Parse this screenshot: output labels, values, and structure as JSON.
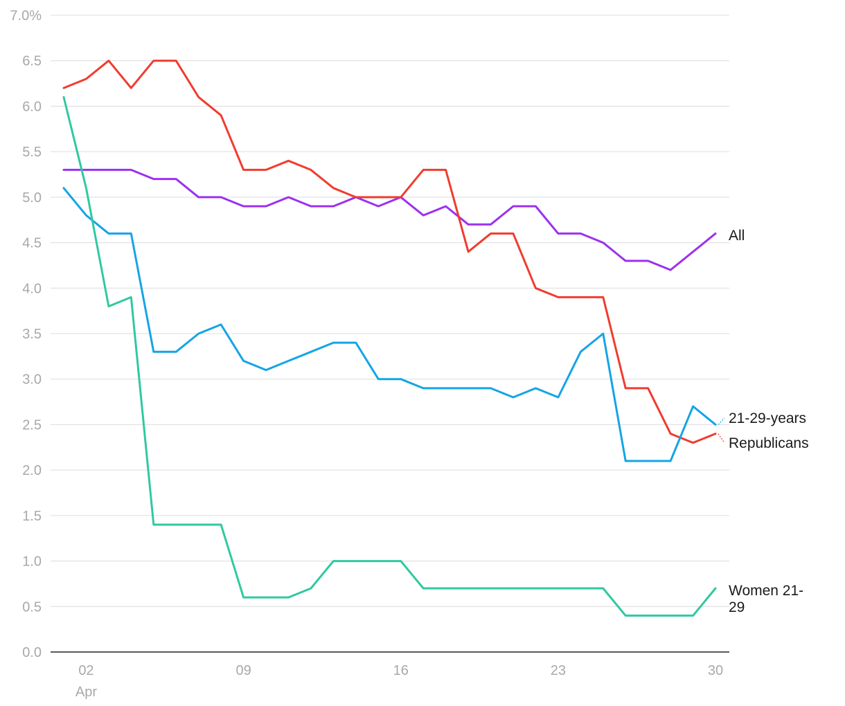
{
  "chart_data": {
    "type": "line",
    "title": "",
    "xlabel": "",
    "ylabel": "",
    "ylim": [
      0,
      7
    ],
    "y_ticks": [
      0,
      0.5,
      1,
      1.5,
      2,
      2.5,
      3,
      3.5,
      4,
      4.5,
      5,
      5.5,
      6,
      6.5,
      7
    ],
    "y_tick_labels": [
      "0.0",
      "0.5",
      "1.0",
      "1.5",
      "2.0",
      "2.5",
      "3.0",
      "3.5",
      "4.0",
      "4.5",
      "5.0",
      "5.5",
      "6.0",
      "6.5",
      "7.0%"
    ],
    "x_days": [
      1,
      2,
      3,
      4,
      5,
      6,
      7,
      8,
      9,
      10,
      11,
      12,
      13,
      14,
      15,
      16,
      17,
      18,
      19,
      20,
      21,
      22,
      23,
      24,
      25,
      26,
      27,
      28,
      29,
      30
    ],
    "x_ticks": [
      {
        "day": 2,
        "label": "02",
        "sublabel": "Apr"
      },
      {
        "day": 9,
        "label": "09",
        "sublabel": ""
      },
      {
        "day": 16,
        "label": "16",
        "sublabel": ""
      },
      {
        "day": 23,
        "label": "23",
        "sublabel": ""
      },
      {
        "day": 30,
        "label": "30",
        "sublabel": ""
      }
    ],
    "series": [
      {
        "name": "All",
        "label_lines": [
          "All"
        ],
        "color": "#9b30f0",
        "values": [
          5.3,
          5.3,
          5.3,
          5.3,
          5.2,
          5.2,
          5.0,
          5.0,
          4.9,
          4.9,
          5.0,
          4.9,
          4.9,
          5.0,
          4.9,
          5.0,
          4.8,
          4.9,
          4.7,
          4.7,
          4.9,
          4.9,
          4.6,
          4.6,
          4.5,
          4.3,
          4.3,
          4.2,
          4.4,
          4.6
        ]
      },
      {
        "name": "Republicans",
        "label_lines": [
          "Republicans"
        ],
        "color": "#f03c2e",
        "values": [
          6.2,
          6.3,
          6.5,
          6.2,
          6.5,
          6.5,
          6.1,
          5.9,
          5.3,
          5.3,
          5.4,
          5.3,
          5.1,
          5.0,
          5.0,
          5.0,
          5.3,
          5.3,
          4.4,
          4.6,
          4.6,
          4.0,
          3.9,
          3.9,
          3.9,
          2.9,
          2.9,
          2.4,
          2.3,
          2.4
        ]
      },
      {
        "name": "21-29-years",
        "label_lines": [
          "21-29-years"
        ],
        "color": "#14a4e6",
        "values": [
          5.1,
          4.8,
          4.6,
          4.6,
          3.3,
          3.3,
          3.5,
          3.6,
          3.2,
          3.1,
          3.2,
          3.3,
          3.4,
          3.4,
          3.0,
          3.0,
          2.9,
          2.9,
          2.9,
          2.9,
          2.8,
          2.9,
          2.8,
          3.3,
          3.5,
          2.1,
          2.1,
          2.1,
          2.7,
          2.5
        ]
      },
      {
        "name": "Women 21-29",
        "label_lines": [
          "Women 21-",
          "29"
        ],
        "color": "#2ec9a0",
        "values": [
          6.1,
          5.1,
          3.8,
          3.9,
          1.4,
          1.4,
          1.4,
          1.4,
          0.6,
          0.6,
          0.6,
          0.7,
          1.0,
          1.0,
          1.0,
          1.0,
          0.7,
          0.7,
          0.7,
          0.7,
          0.7,
          0.7,
          0.7,
          0.7,
          0.7,
          0.4,
          0.4,
          0.4,
          0.4,
          0.7
        ]
      }
    ]
  }
}
